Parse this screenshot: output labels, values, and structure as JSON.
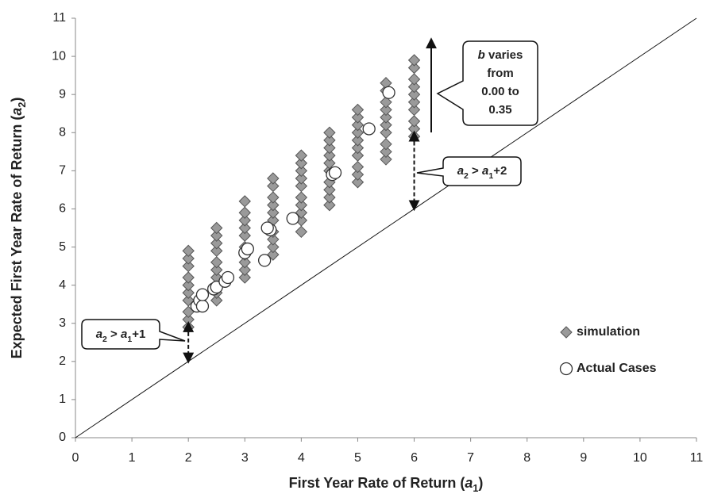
{
  "chart_data": {
    "type": "scatter",
    "xlabel": [
      {
        "text": "First Year Rate of Return ("
      },
      {
        "text": "a",
        "italic": true
      },
      {
        "text": "1",
        "sub": true
      },
      {
        "text": ")"
      }
    ],
    "ylabel": [
      {
        "text": "Expected First Year Rate of Return ("
      },
      {
        "text": "a",
        "italic": true
      },
      {
        "text": "2",
        "sub": true
      },
      {
        "text": ")"
      }
    ],
    "xlim": [
      0,
      11
    ],
    "ylim": [
      0,
      11
    ],
    "xticks": [
      0,
      1,
      2,
      3,
      4,
      5,
      6,
      7,
      8,
      9,
      10,
      11
    ],
    "yticks": [
      0,
      1,
      2,
      3,
      4,
      5,
      6,
      7,
      8,
      9,
      10,
      11
    ],
    "identity_line": true,
    "legend": "lower right",
    "series": [
      {
        "name": "simulation",
        "marker": "diamond",
        "color": "#9a9a9a",
        "x": [
          2,
          2,
          2,
          2,
          2,
          2,
          2,
          2,
          2,
          2,
          2.5,
          2.5,
          2.5,
          2.5,
          2.5,
          2.5,
          2.5,
          2.5,
          2.5,
          2.5,
          3,
          3,
          3,
          3,
          3,
          3,
          3,
          3,
          3,
          3,
          3.5,
          3.5,
          3.5,
          3.5,
          3.5,
          3.5,
          3.5,
          3.5,
          3.5,
          3.5,
          4,
          4,
          4,
          4,
          4,
          4,
          4,
          4,
          4,
          4,
          4.5,
          4.5,
          4.5,
          4.5,
          4.5,
          4.5,
          4.5,
          4.5,
          4.5,
          4.5,
          5,
          5,
          5,
          5,
          5,
          5,
          5,
          5,
          5,
          5,
          5.5,
          5.5,
          5.5,
          5.5,
          5.5,
          5.5,
          5.5,
          5.5,
          5.5,
          5.5,
          6,
          6,
          6,
          6,
          6,
          6,
          6,
          6,
          6,
          6
        ],
        "values": [
          2.9,
          3.1,
          3.3,
          3.6,
          3.8,
          4.0,
          4.2,
          4.5,
          4.7,
          4.9,
          3.6,
          3.8,
          4.0,
          4.2,
          4.4,
          4.6,
          4.9,
          5.1,
          5.3,
          5.5,
          4.2,
          4.4,
          4.6,
          4.8,
          5.0,
          5.3,
          5.5,
          5.7,
          5.9,
          6.2,
          4.8,
          5.0,
          5.2,
          5.4,
          5.7,
          5.9,
          6.1,
          6.3,
          6.6,
          6.8,
          5.4,
          5.7,
          5.9,
          6.1,
          6.3,
          6.6,
          6.8,
          7.0,
          7.2,
          7.4,
          6.1,
          6.3,
          6.5,
          6.7,
          7.0,
          7.2,
          7.4,
          7.6,
          7.8,
          8.0,
          6.7,
          6.9,
          7.1,
          7.4,
          7.6,
          7.8,
          8.0,
          8.2,
          8.4,
          8.6,
          7.3,
          7.5,
          7.7,
          8.0,
          8.2,
          8.4,
          8.6,
          8.8,
          9.1,
          9.3,
          7.9,
          8.1,
          8.3,
          8.6,
          8.8,
          9.0,
          9.2,
          9.4,
          9.7,
          9.9
        ]
      },
      {
        "name": "Actual Cases",
        "marker": "circle",
        "color": "#ffffff",
        "x": [
          2.15,
          2.2,
          2.25,
          2.25,
          2.45,
          2.5,
          2.65,
          2.7,
          3.0,
          3.05,
          3.35,
          3.45,
          3.4,
          3.85,
          4.55,
          4.6,
          5.2,
          5.55
        ],
        "values": [
          3.45,
          3.6,
          3.45,
          3.75,
          3.9,
          3.95,
          4.1,
          4.2,
          4.85,
          4.95,
          4.65,
          5.45,
          5.5,
          5.75,
          6.9,
          6.95,
          8.1,
          9.05
        ]
      }
    ],
    "annotations": [
      {
        "lines": [
          [
            {
              "text": "a",
              "italic": true
            },
            {
              "text": "2",
              "sub": true
            },
            {
              "text": " > "
            },
            {
              "text": "a",
              "italic": true
            },
            {
              "text": "1",
              "sub": true
            },
            {
              "text": "+1"
            }
          ]
        ],
        "arrow": {
          "x": 2,
          "from": 2,
          "to": 3
        }
      },
      {
        "lines": [
          [
            {
              "text": "a",
              "italic": true
            },
            {
              "text": "2",
              "sub": true
            },
            {
              "text": " > "
            },
            {
              "text": "a",
              "italic": true
            },
            {
              "text": "1",
              "sub": true
            },
            {
              "text": "+2"
            }
          ]
        ],
        "arrow": {
          "x": 6,
          "from": 6,
          "to": 8
        }
      },
      {
        "lines": [
          [
            {
              "text": "b",
              "italic": true
            },
            {
              "text": " varies"
            }
          ],
          [
            {
              "text": "from"
            }
          ],
          [
            {
              "text": "0.00 to"
            }
          ],
          [
            {
              "text": "0.35"
            }
          ]
        ]
      }
    ]
  }
}
